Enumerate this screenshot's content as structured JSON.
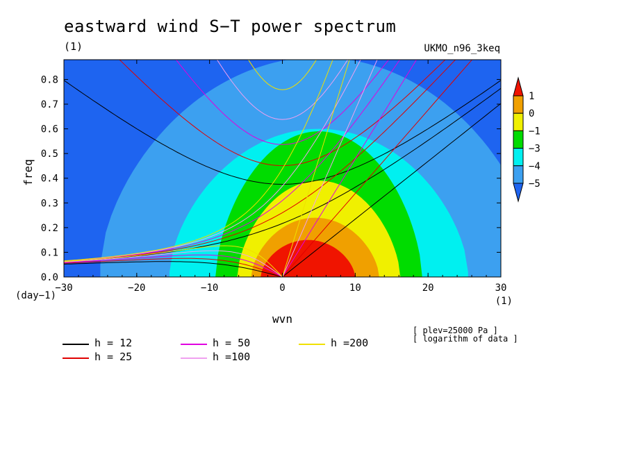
{
  "title": "eastward wind S−T power spectrum",
  "subtitle_left": "(1)",
  "dataset_label": "UKMO_n96_3keq",
  "notes": [
    "[ plev=25000 Pa ]",
    "[ logarithm of data ]"
  ],
  "x_units_label": "(1)",
  "y_units_label": "(day−1)",
  "chart_data": {
    "type": "heatmap",
    "title": "eastward wind S−T power spectrum",
    "xlabel": "wvn",
    "ylabel": "freq",
    "xlim": [
      -30,
      30
    ],
    "ylim": [
      0,
      0.88
    ],
    "x_ticks": [
      -30,
      -20,
      -10,
      0,
      10,
      20,
      30
    ],
    "x_tick_labels": [
      "−30",
      "−20",
      "−10",
      "0",
      "10",
      "20",
      "30"
    ],
    "y_ticks": [
      0.0,
      0.1,
      0.2,
      0.3,
      0.4,
      0.5,
      0.6,
      0.7,
      0.8
    ],
    "y_tick_labels": [
      "0.0",
      "0.1",
      "0.2",
      "0.3",
      "0.4",
      "0.5",
      "0.6",
      "0.7",
      "0.8"
    ],
    "colorbar": {
      "levels": [
        -5,
        -4,
        -3,
        -1,
        0,
        1
      ],
      "labels": [
        "−5",
        "−4",
        "−3",
        "−1",
        "0",
        "1"
      ],
      "colors": [
        "#1e64f0",
        "#3ca0f0",
        "#00f0f0",
        "#00dc00",
        "#f0f000",
        "#f0a000",
        "#f01400"
      ]
    },
    "contour_regions": [
      {
        "level_min": -5,
        "level_max": -4,
        "color": "#3ca0f0",
        "center": [
          5,
          0.05
        ],
        "half_width": 30,
        "height": 0.84
      },
      {
        "level_min": -4,
        "level_max": -3,
        "color": "#00f0f0",
        "center": [
          5,
          0.02
        ],
        "half_width": 20.5,
        "height": 0.58
      },
      {
        "level_min": -3,
        "level_max": -1,
        "color": "#00dc00",
        "center": [
          5,
          0.0
        ],
        "half_width": 14.2,
        "height": 0.59
      },
      {
        "level_min": -1,
        "level_max": 0,
        "color": "#f0f000",
        "center": [
          5,
          0.0
        ],
        "half_width": 11.2,
        "height": 0.39
      },
      {
        "level_min": 0,
        "level_max": 1,
        "color": "#f0a000",
        "center": [
          4.5,
          0.0
        ],
        "half_width": 8.8,
        "height": 0.24
      },
      {
        "level_min": 1,
        "level_max": 99,
        "color": "#f01400",
        "center": [
          3.5,
          0.0
        ],
        "half_width": 6.5,
        "height": 0.15
      }
    ],
    "series": [
      {
        "name": "h = 12",
        "equivalent_depth": 12,
        "color": "#000000"
      },
      {
        "name": "h = 25",
        "equivalent_depth": 25,
        "color": "#e00000"
      },
      {
        "name": "h = 50",
        "equivalent_depth": 50,
        "color": "#e000e0"
      },
      {
        "name": "h =100",
        "equivalent_depth": 100,
        "color": "#f0a0f0"
      },
      {
        "name": "h =200",
        "equivalent_depth": 200,
        "color": "#f0e000"
      }
    ],
    "legend_position": "bottom"
  }
}
